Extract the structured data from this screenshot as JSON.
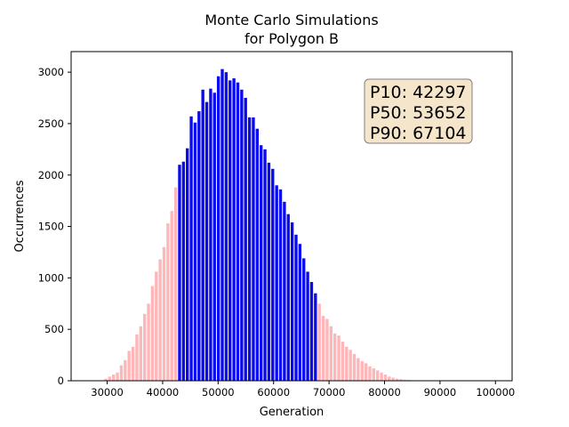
{
  "chart_data": {
    "type": "bar",
    "title": "Monte Carlo Simulations",
    "subtitle": "for Polygon B",
    "xlabel": "Generation",
    "ylabel": "Occurrences",
    "xlim": [
      23500,
      103000
    ],
    "ylim": [
      0,
      3200
    ],
    "x_ticks": [
      30000,
      40000,
      50000,
      60000,
      70000,
      80000,
      90000,
      100000
    ],
    "y_ticks": [
      0,
      500,
      1000,
      1500,
      2000,
      2500,
      3000
    ],
    "x_tick_labels": [
      "30000",
      "40000",
      "50000",
      "60000",
      "70000",
      "80000",
      "90000",
      "100000"
    ],
    "y_tick_labels": [
      "0",
      "500",
      "1000",
      "1500",
      "2000",
      "2500",
      "3000"
    ],
    "grid": false,
    "bin_width": 700,
    "x": [
      29750,
      30450,
      31150,
      31850,
      32550,
      33250,
      33950,
      34650,
      35350,
      36050,
      36750,
      37450,
      38150,
      38850,
      39550,
      40250,
      40950,
      41650,
      42350,
      43050,
      43750,
      44450,
      45150,
      45850,
      46550,
      47250,
      47950,
      48650,
      49350,
      50050,
      50750,
      51450,
      52150,
      52850,
      53550,
      54250,
      54950,
      55650,
      56350,
      57050,
      57750,
      58450,
      59150,
      59850,
      60550,
      61250,
      61950,
      62650,
      63350,
      64050,
      64750,
      65450,
      66150,
      66850,
      67550,
      68250,
      68950,
      69650,
      70350,
      71050,
      71750,
      72450,
      73150,
      73850,
      74550,
      75250,
      75950,
      76650,
      77350,
      78050,
      78750,
      79450,
      80150,
      80850,
      81550,
      82250,
      82950,
      83650,
      84350,
      85050,
      85750,
      86450,
      87150,
      87850
    ],
    "values": [
      20,
      40,
      60,
      80,
      150,
      200,
      290,
      330,
      450,
      530,
      650,
      750,
      920,
      1060,
      1180,
      1300,
      1530,
      1650,
      1880,
      2100,
      2130,
      2260,
      2570,
      2510,
      2620,
      2830,
      2710,
      2840,
      2800,
      2960,
      3030,
      3000,
      2920,
      2940,
      2900,
      2830,
      2750,
      2560,
      2560,
      2450,
      2290,
      2250,
      2120,
      2060,
      1900,
      1860,
      1740,
      1620,
      1540,
      1420,
      1330,
      1190,
      1060,
      960,
      850,
      750,
      630,
      600,
      530,
      460,
      440,
      380,
      330,
      300,
      260,
      220,
      190,
      170,
      140,
      120,
      100,
      80,
      60,
      40,
      30,
      20,
      15,
      10,
      8,
      4,
      3,
      2,
      1,
      1
    ],
    "series_colors": {
      "outside_p10_p90": "#ffb6b9",
      "between_p10_p90": "#0a0aee"
    },
    "highlight_range": [
      43000,
      67600
    ],
    "stats_box": {
      "lines": [
        "P10: 42297",
        "P50: 53652",
        "P90: 67104"
      ],
      "background": "#f5e6cb",
      "border": "#7f7f7f",
      "placement": "top-right"
    }
  }
}
